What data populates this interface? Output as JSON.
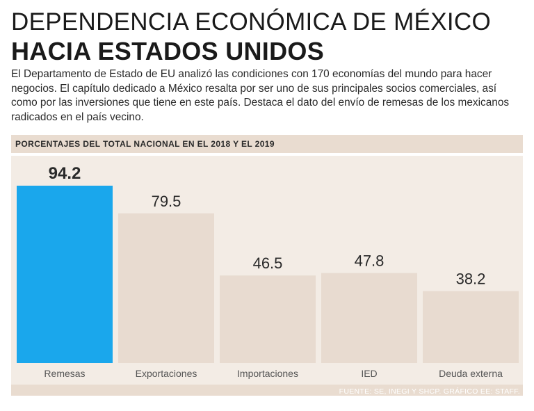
{
  "header": {
    "title_line1": "DEPENDENCIA ECONÓMICA DE MÉXICO",
    "title_line2": "HACIA ESTADOS UNIDOS",
    "intro": "El Departamento de Estado de EU analizó las condiciones con 170 economías del mundo para hacer negocios. El capítulo dedicado a México resalta por ser uno de sus principales socios comerciales, así como por las inversiones que tiene en este país. Destaca el dato del envío de remesas de los mexicanos radicados en el país vecino."
  },
  "subhead": "PORCENTAJES DEL TOTAL NACIONAL EN EL 2018 Y EL 2019",
  "source": "FUENTE: SE, INEGI Y SHCP. GRÁFICO EE: STAFF.",
  "colors": {
    "highlight": "#1aa7ec",
    "bar": "#e8dbd0",
    "label": "#2a2a2a",
    "axis": "#555555"
  },
  "chart_data": {
    "type": "bar",
    "title": "PORCENTAJES DEL TOTAL NACIONAL EN EL 2018 Y EL 2019",
    "categories": [
      "Remesas",
      "Exportaciones",
      "Importaciones",
      "IED",
      "Deuda externa"
    ],
    "values": [
      94.2,
      79.5,
      46.5,
      47.8,
      38.2
    ],
    "value_labels": [
      "94.2",
      "79.5",
      "46.5",
      "47.8",
      "38.2"
    ],
    "highlight_index": 0,
    "xlabel": "",
    "ylabel": "",
    "ylim": [
      0,
      100
    ],
    "grid": false,
    "legend": "none"
  }
}
